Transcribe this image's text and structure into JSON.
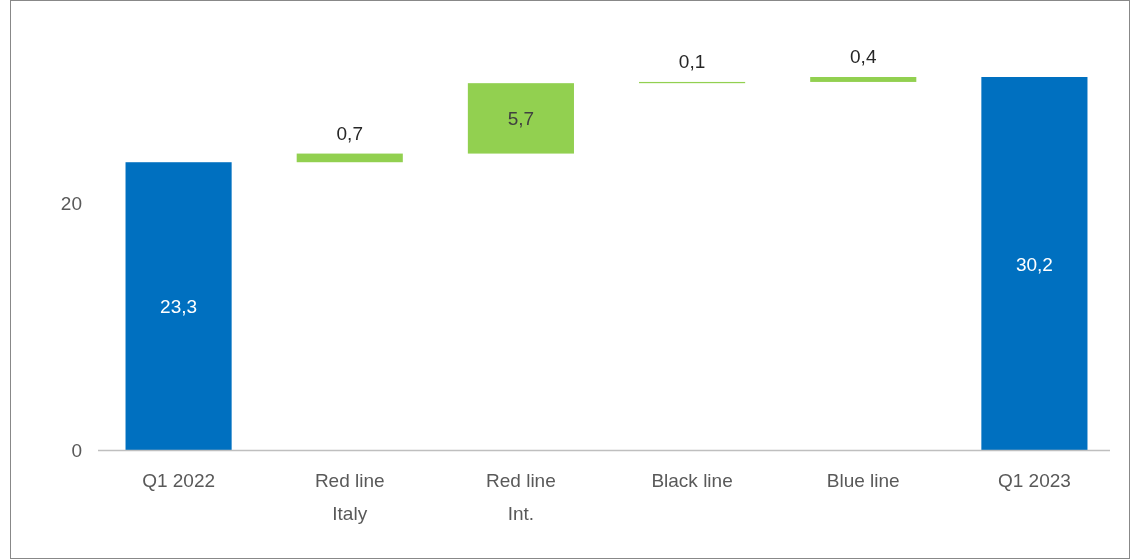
{
  "chart_data": {
    "type": "bar",
    "categories": [
      "Q1 2022",
      "Red line\nItaly",
      "Red line\nInt.",
      "Black line",
      "Blue line",
      "Q1 2023"
    ],
    "values": [
      23.3,
      0.7,
      5.7,
      0.1,
      0.4,
      30.2
    ],
    "base": [
      0,
      23.3,
      24.0,
      29.7,
      29.8,
      0
    ],
    "colors": [
      "#0070c0",
      "#92d050",
      "#92d050",
      "#92d050",
      "#92d050",
      "#0070c0"
    ],
    "value_labels": [
      "23,3",
      "0,7",
      "5,7",
      "0,1",
      "0,4",
      "30,2"
    ],
    "ylim": [
      0,
      30.2
    ],
    "yticks": [
      0,
      20
    ],
    "grid": false
  }
}
